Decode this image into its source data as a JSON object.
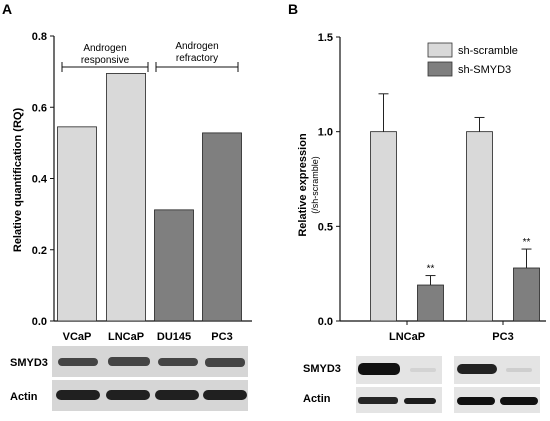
{
  "panels": {
    "a": {
      "letter": "A"
    },
    "b": {
      "letter": "B"
    }
  },
  "colors": {
    "light_bar": "#d9d9d9",
    "dark_bar": "#7f7f7f",
    "axis": "#111111",
    "blot_band": "#1c1c1c"
  },
  "chart_data": [
    {
      "type": "bar",
      "panel": "A",
      "ylabel": "Relative quantification (RQ)",
      "ylim": [
        0,
        0.8
      ],
      "yticks": [
        "0.0",
        "0.2",
        "0.4",
        "0.6",
        "0.8"
      ],
      "categories": [
        "VCaP",
        "LNCaP",
        "DU145",
        "PC3"
      ],
      "values": [
        0.545,
        0.695,
        0.312,
        0.528
      ],
      "bar_colors": [
        "#d9d9d9",
        "#d9d9d9",
        "#7f7f7f",
        "#7f7f7f"
      ],
      "groups": [
        {
          "label_line1": "Androgen",
          "label_line2": "responsive",
          "categories": [
            "VCaP",
            "LNCaP"
          ]
        },
        {
          "label_line1": "Androgen",
          "label_line2": "refractory",
          "categories": [
            "DU145",
            "PC3"
          ]
        }
      ],
      "grid": false
    },
    {
      "type": "bar",
      "panel": "B",
      "ylabel": "Relative expression",
      "ylabel_sub": "(/sh-scramble)",
      "ylim": [
        0,
        1.5
      ],
      "yticks": [
        "0.0",
        "0.5",
        "1.0",
        "1.5"
      ],
      "categories": [
        "LNCaP",
        "PC3"
      ],
      "series": [
        {
          "name": "sh-scramble",
          "values": [
            1.0,
            1.0
          ],
          "errors": [
            0.2,
            0.075
          ],
          "color": "#d9d9d9",
          "significance": [
            "",
            ""
          ]
        },
        {
          "name": "sh-SMYD3",
          "values": [
            0.19,
            0.28
          ],
          "errors": [
            0.05,
            0.1
          ],
          "color": "#7f7f7f",
          "significance": [
            "**",
            "**"
          ]
        }
      ],
      "legend_position": "top-right",
      "grid": false
    }
  ],
  "blots": {
    "a": {
      "labels": [
        "SMYD3",
        "Actin"
      ]
    },
    "b": {
      "labels": [
        "SMYD3",
        "Actin"
      ]
    }
  }
}
